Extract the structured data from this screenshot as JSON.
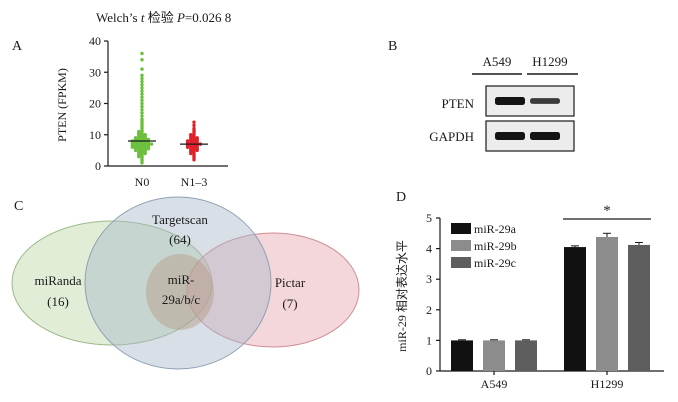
{
  "panels": {
    "A": "A",
    "B": "B",
    "C": "C",
    "D": "D"
  },
  "chart_data": [
    {
      "type": "scatter",
      "panel": "A",
      "title_prefix": "Welch’s ",
      "title_t": "t",
      "title_mid": " 检验 ",
      "title_p": "P",
      "title_value": "=0.026 8",
      "ylabel": "PTEN (FPKM)",
      "ylim": [
        0,
        40
      ],
      "yticks": [
        "0",
        "10",
        "20",
        "30",
        "40"
      ],
      "categories": [
        "N0",
        "N1–3"
      ],
      "series": [
        {
          "name": "N0",
          "color": "#6cbf3c",
          "values": [
            36,
            34,
            31,
            29,
            28,
            27,
            26,
            25,
            24,
            23,
            22,
            21,
            20,
            19,
            18,
            17,
            16,
            15,
            14.5,
            14,
            13.5,
            13,
            12.5,
            12,
            11.5,
            11,
            11,
            10.5,
            10.5,
            10,
            10,
            10,
            9.5,
            9.5,
            9.5,
            9,
            9,
            9,
            9,
            8.5,
            8.5,
            8.5,
            8.5,
            8.5,
            8,
            8,
            8,
            8,
            8,
            8,
            7.5,
            7.5,
            7.5,
            7.5,
            7.5,
            7.5,
            7,
            7,
            7,
            7,
            7,
            7,
            7,
            6.5,
            6.5,
            6.5,
            6.5,
            6.5,
            6.5,
            6,
            6,
            6,
            6,
            6,
            6,
            5.5,
            5.5,
            5.5,
            5.5,
            5.5,
            5,
            5,
            5,
            5,
            4.5,
            4.5,
            4.5,
            4,
            4,
            4,
            3.5,
            3.5,
            3,
            3,
            2.5,
            2,
            1.5,
            1
          ]
        },
        {
          "name": "N1–3",
          "color": "#e0202a",
          "values": [
            14,
            13,
            12,
            11.5,
            11,
            10.5,
            10,
            10,
            9.5,
            9.5,
            9,
            9,
            9,
            8.5,
            8.5,
            8.5,
            8,
            8,
            8,
            8,
            7.5,
            7.5,
            7.5,
            7.5,
            7,
            7,
            7,
            7,
            7,
            6.5,
            6.5,
            6.5,
            6.5,
            6,
            6,
            6,
            6,
            5.5,
            5.5,
            5.5,
            5,
            5,
            5,
            4.5,
            4.5,
            4,
            4,
            3.5,
            3,
            2.5,
            2
          ]
        }
      ]
    },
    {
      "type": "blot",
      "panel": "B",
      "columns": [
        "A549",
        "H1299"
      ],
      "rows": [
        {
          "label": "PTEN",
          "intensities": [
            1.0,
            0.55
          ]
        },
        {
          "label": "GAPDH",
          "intensities": [
            1.0,
            1.0
          ]
        }
      ]
    },
    {
      "type": "venn",
      "panel": "C",
      "sets": [
        {
          "name": "miRanda",
          "count": "(16)",
          "color": "#bcd7a6"
        },
        {
          "name": "Targetscan",
          "count": "(64)",
          "color": "#a9b8c8"
        },
        {
          "name": "Pictar",
          "count": "(7)",
          "color": "#e6a7ae"
        }
      ],
      "intersection": {
        "line1": "miR-",
        "line2": "29a/b/c",
        "color": "#b59a86"
      }
    },
    {
      "type": "bar",
      "panel": "D",
      "ylabel": "miR-29 相对表达水平",
      "ylim": [
        0,
        5
      ],
      "yticks": [
        "0",
        "1",
        "2",
        "3",
        "4",
        "5"
      ],
      "categories": [
        "A549",
        "H1299"
      ],
      "series": [
        {
          "name": "miR-29a",
          "color": "#111111",
          "values": [
            1.0,
            4.05
          ],
          "errors": [
            0.02,
            0.04
          ]
        },
        {
          "name": "miR-29b",
          "color": "#8c8c8c",
          "values": [
            1.0,
            4.38
          ],
          "errors": [
            0.02,
            0.12
          ]
        },
        {
          "name": "miR-29c",
          "color": "#5e5e5e",
          "values": [
            1.0,
            4.12
          ],
          "errors": [
            0.02,
            0.08
          ]
        }
      ],
      "significance": "*",
      "legend": "top-left"
    }
  ]
}
